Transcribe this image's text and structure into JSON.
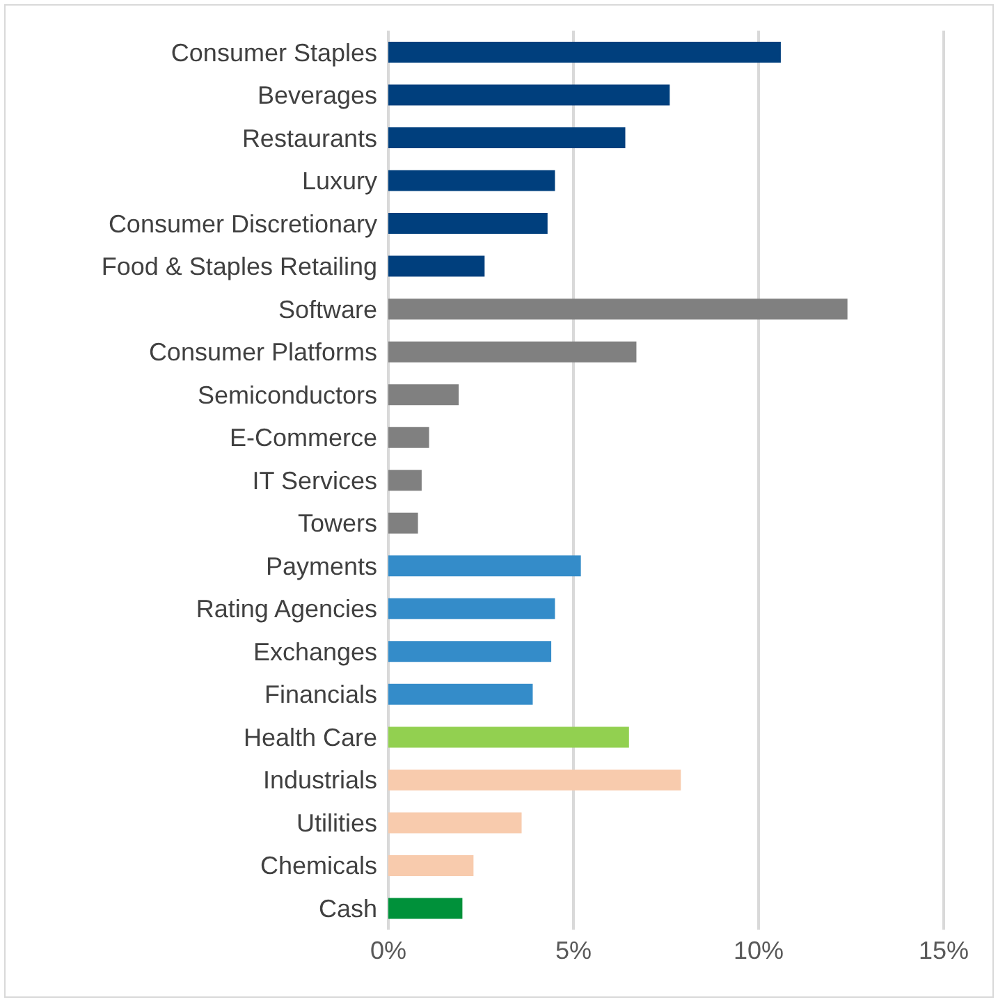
{
  "chart_data": {
    "type": "bar",
    "orientation": "horizontal",
    "categories": [
      "Consumer Staples",
      "Beverages",
      "Restaurants",
      "Luxury",
      "Consumer Discretionary",
      "Food & Staples Retailing",
      "Software",
      "Consumer Platforms",
      "Semiconductors",
      "E-Commerce",
      "IT Services",
      "Towers",
      "Payments",
      "Rating Agencies",
      "Exchanges",
      "Financials",
      "Health Care",
      "Industrials",
      "Utilities",
      "Chemicals",
      "Cash"
    ],
    "values": [
      10.6,
      7.6,
      6.4,
      4.5,
      4.3,
      2.6,
      12.4,
      6.7,
      1.9,
      1.1,
      0.9,
      0.8,
      5.2,
      4.5,
      4.4,
      3.9,
      6.5,
      7.9,
      3.6,
      2.3,
      2.0
    ],
    "colors": [
      "#003f7d",
      "#003f7d",
      "#003f7d",
      "#003f7d",
      "#003f7d",
      "#003f7d",
      "#808080",
      "#808080",
      "#808080",
      "#808080",
      "#808080",
      "#808080",
      "#348cc9",
      "#348cc9",
      "#348cc9",
      "#348cc9",
      "#92d050",
      "#f8cbad",
      "#f8cbad",
      "#f8cbad",
      "#00913a"
    ],
    "xlim": [
      0,
      15
    ],
    "xticks": [
      {
        "value": 0,
        "label": "0%"
      },
      {
        "value": 5,
        "label": "5%"
      },
      {
        "value": 10,
        "label": "10%"
      },
      {
        "value": 15,
        "label": "15%"
      }
    ],
    "grid": "x"
  }
}
